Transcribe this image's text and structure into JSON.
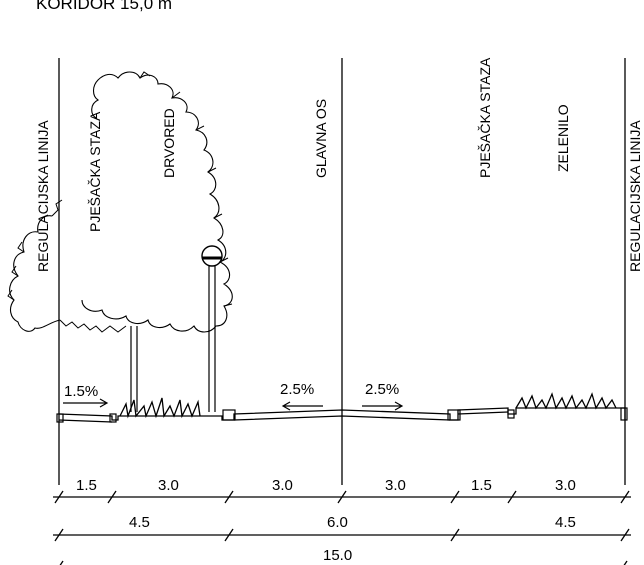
{
  "title": "KORIDOR 15,0 m",
  "labels": {
    "regulation_left": "REGULACIJSKA LINIJA",
    "sidewalk_left": "PJEŠAČKA STAZA",
    "tree_row": "DRVORED",
    "main_axis": "GLAVNA OS",
    "sidewalk_right": "PJEŠAČKA STAZA",
    "greenery": "ZELENILO",
    "regulation_right": "REGULACIJSKA LINIJA"
  },
  "slopes": {
    "sidewalk_left": "1.5%",
    "road_left": "2.5%",
    "road_right": "2.5%"
  },
  "dimensions": {
    "row1": [
      "1.5",
      "3.0",
      "3.0",
      "3.0",
      "1.5",
      "3.0"
    ],
    "row2": [
      "4.5",
      "6.0",
      "4.5"
    ],
    "total": "15.0"
  }
}
